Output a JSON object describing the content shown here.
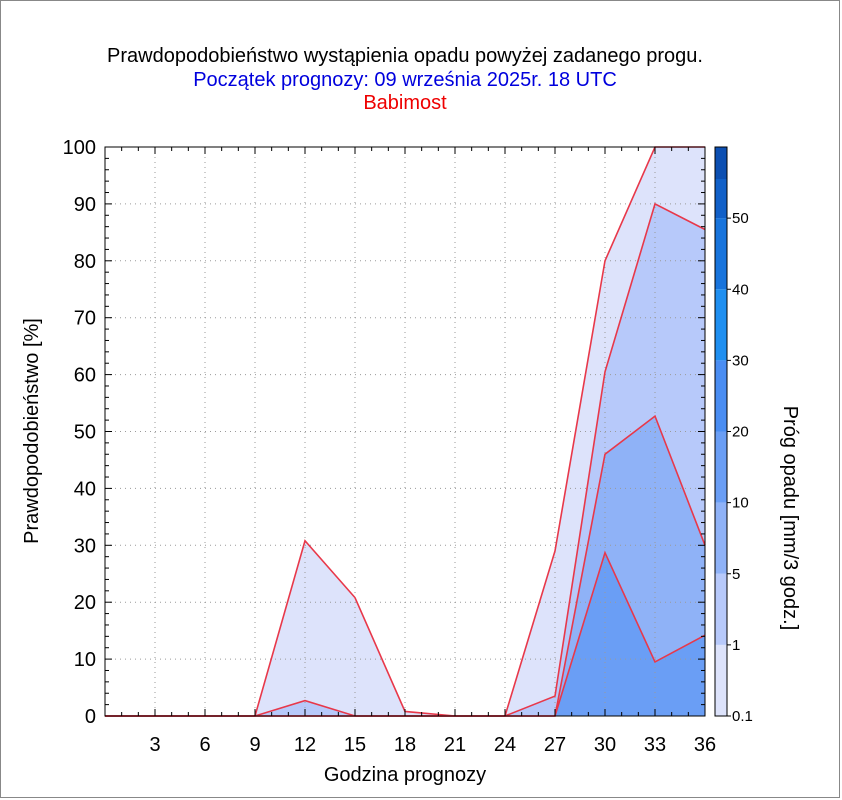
{
  "header": {
    "title": "Prawdopodobieństwo wystąpienia opadu powyżej zadanego progu.",
    "subtitle": "Początek prognozy: 09 września 2025r. 18 UTC",
    "location": "Babimost"
  },
  "colors": {
    "title": "#000000",
    "subtitle": "#0000dd",
    "location": "#ee0000",
    "series_line": "#e8384a"
  },
  "chart_data": {
    "type": "area",
    "title": "Prawdopodobieństwo wystąpienia opadu powyżej zadanego progu.",
    "xlabel": "Godzina prognozy",
    "ylabel": "Prawdopodobieństwo [%]",
    "xlim": [
      0,
      36
    ],
    "ylim": [
      0,
      100
    ],
    "x_ticks": [
      3,
      6,
      9,
      12,
      15,
      18,
      21,
      24,
      27,
      30,
      33,
      36
    ],
    "y_ticks": [
      0,
      10,
      20,
      30,
      40,
      50,
      60,
      70,
      80,
      90,
      100
    ],
    "grid": true,
    "x": [
      0,
      3,
      6,
      9,
      12,
      15,
      18,
      21,
      24,
      27,
      30,
      33,
      36
    ],
    "series": [
      {
        "threshold": 0.1,
        "color": "#dde3fb",
        "values": [
          0,
          0,
          0,
          0,
          30.8,
          20.8,
          0.8,
          0,
          0,
          29,
          80,
          100,
          100
        ]
      },
      {
        "threshold": 1,
        "color": "#b7c9fa",
        "values": [
          0,
          0,
          0,
          0,
          2.7,
          0,
          0,
          0,
          0,
          3.5,
          60.5,
          90,
          85.5
        ]
      },
      {
        "threshold": 5,
        "color": "#8fb2f7",
        "values": [
          0,
          0,
          0,
          0,
          0,
          0,
          0,
          0,
          0,
          0,
          46,
          52.7,
          30
        ]
      },
      {
        "threshold": 10,
        "color": "#6a9ef5",
        "values": [
          0,
          0,
          0,
          0,
          0,
          0,
          0,
          0,
          0,
          0,
          28.7,
          9.5,
          14.2
        ]
      }
    ],
    "colorbar": {
      "label": "Próg opadu [mm/3 godz.]",
      "ticks": [
        "0.1",
        "1",
        "5",
        "10",
        "20",
        "30",
        "40",
        "50"
      ],
      "colors": [
        "#dde3fb",
        "#b7c9fa",
        "#8fb2f7",
        "#6a9ef5",
        "#4a8df2",
        "#1f8ff0",
        "#1874dc",
        "#1160c8",
        "#0c4fb2"
      ]
    }
  }
}
